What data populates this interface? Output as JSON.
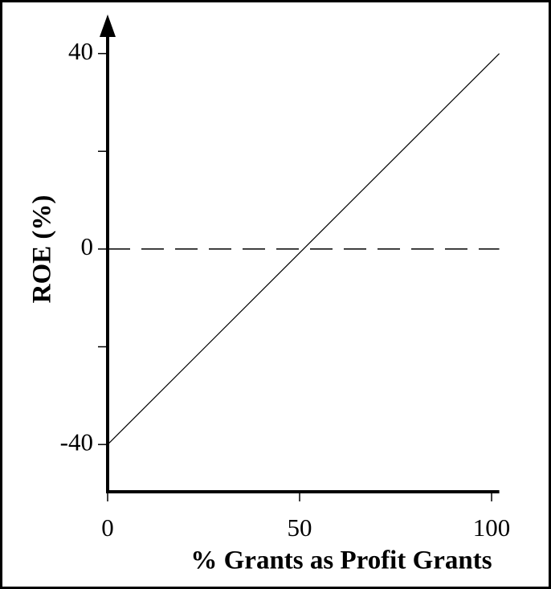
{
  "chart_data": {
    "type": "line",
    "x_label": "% Grants as Profit Grants",
    "y_label": "ROE  (%)",
    "x": [
      0,
      102
    ],
    "series": [
      {
        "color": "#000000",
        "values": [
          -40,
          40
        ]
      }
    ],
    "xlim": [
      0,
      102
    ],
    "xticks": [
      0,
      50,
      100
    ],
    "ylim": [
      -50,
      48
    ],
    "yticks": [
      -40,
      0,
      40
    ],
    "minor_yticks": [
      -20,
      20
    ],
    "reference_line": 0,
    "grid": false
  }
}
